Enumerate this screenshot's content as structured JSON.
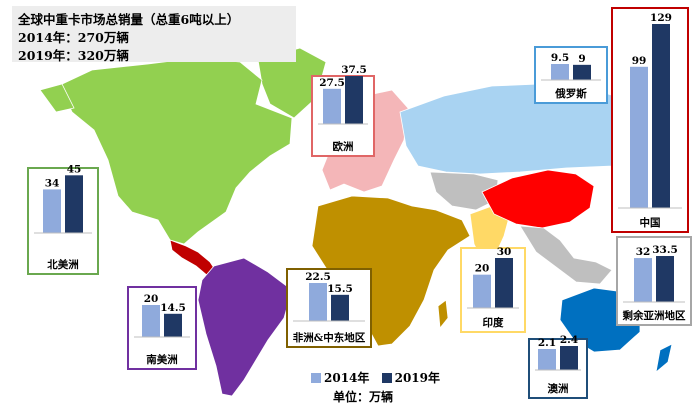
{
  "title": {
    "line1": "全球中重卡市场总销量（总重6吨以上）",
    "line2": "2014年：270万辆",
    "line3": "2019年：320万辆"
  },
  "legend": {
    "series_2014": "2014年",
    "series_2019": "2019年"
  },
  "unit_label": "单位：万辆",
  "colors": {
    "bar_2014": "#8FAADC",
    "bar_2019": "#1F3864",
    "north_america": "#92D050",
    "south_america": "#7030A0",
    "europe": "#F4B6B8",
    "russia": "#A9D3F2",
    "africa_middle_east": "#BF9000",
    "india": "#FFD966",
    "china": "#FF0000",
    "other_asia": "#BFBFBF",
    "australia": "#0070C0",
    "central_america": "#C00000"
  },
  "chart_data": [
    {
      "type": "bar",
      "region": "北美洲",
      "frame_color": "#6AA84F",
      "categories": [
        "2014年",
        "2019年"
      ],
      "values": [
        34,
        45
      ],
      "value_labels": [
        "34",
        "45"
      ]
    },
    {
      "type": "bar",
      "region": "南美洲",
      "frame_color": "#7030A0",
      "categories": [
        "2014年",
        "2019年"
      ],
      "values": [
        20,
        14.5
      ],
      "value_labels": [
        "20",
        "14.5"
      ]
    },
    {
      "type": "bar",
      "region": "欧洲",
      "frame_color": "#E06666",
      "categories": [
        "2014年",
        "2019年"
      ],
      "values": [
        27.5,
        37.5
      ],
      "value_labels": [
        "27.5",
        "37.5"
      ]
    },
    {
      "type": "bar",
      "region": "俄罗斯",
      "frame_color": "#4A9BD8",
      "categories": [
        "2014年",
        "2019年"
      ],
      "values": [
        9.5,
        9
      ],
      "value_labels": [
        "9.5",
        "9"
      ]
    },
    {
      "type": "bar",
      "region": "中国",
      "frame_color": "#C00000",
      "categories": [
        "2014年",
        "2019年"
      ],
      "values": [
        99,
        129
      ],
      "value_labels": [
        "99",
        "129"
      ]
    },
    {
      "type": "bar",
      "region": "非洲&中东地区",
      "frame_color": "#7F6000",
      "categories": [
        "2014年",
        "2019年"
      ],
      "values": [
        22.5,
        15.5
      ],
      "value_labels": [
        "22.5",
        "15.5"
      ]
    },
    {
      "type": "bar",
      "region": "印度",
      "frame_color": "#FFD966",
      "categories": [
        "2014年",
        "2019年"
      ],
      "values": [
        20,
        30
      ],
      "value_labels": [
        "20",
        "30"
      ]
    },
    {
      "type": "bar",
      "region": "剩余亚洲地区",
      "frame_color": "#A6A6A6",
      "categories": [
        "2014年",
        "2019年"
      ],
      "values": [
        32,
        33.5
      ],
      "value_labels": [
        "32",
        "33.5"
      ]
    },
    {
      "type": "bar",
      "region": "澳洲",
      "frame_color": "#1F4E79",
      "categories": [
        "2014年",
        "2019年"
      ],
      "values": [
        2.1,
        2.4
      ],
      "value_labels": [
        "2.1",
        "2.4"
      ]
    }
  ]
}
